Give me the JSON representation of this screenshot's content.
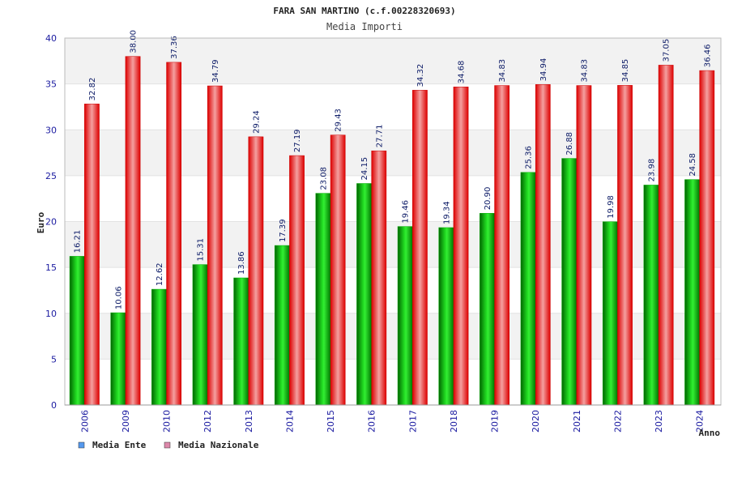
{
  "chart_data": {
    "type": "bar",
    "title": "FARA SAN MARTINO (c.f.00228320693)",
    "subtitle": "Media Importi",
    "xlabel": "Anno",
    "ylabel": "Euro",
    "ylim": [
      0,
      40
    ],
    "yticks": [
      0,
      5,
      10,
      15,
      20,
      25,
      30,
      35,
      40
    ],
    "categories": [
      "2006",
      "2009",
      "2010",
      "2012",
      "2013",
      "2014",
      "2015",
      "2016",
      "2017",
      "2018",
      "2019",
      "2020",
      "2021",
      "2022",
      "2023",
      "2024"
    ],
    "series": [
      {
        "name": "Media Ente",
        "color": "#00cc00",
        "legend_color": "#5599ee",
        "values": [
          16.21,
          10.06,
          12.62,
          15.31,
          13.86,
          17.39,
          23.08,
          24.15,
          19.46,
          19.34,
          20.9,
          25.36,
          26.88,
          19.98,
          23.98,
          24.58
        ],
        "labels": [
          "16.21",
          "10.06",
          "12.62",
          "15.31",
          "13.86",
          "17.39",
          "23.08",
          "24.15",
          "19.46",
          "19.34",
          "20.90",
          "25.36",
          "26.88",
          "19.98",
          "23.98",
          "24.58"
        ]
      },
      {
        "name": "Media Nazionale",
        "color": "#ee1111",
        "legend_color": "#dd88aa",
        "values": [
          32.82,
          38.0,
          37.36,
          34.79,
          29.24,
          27.19,
          29.43,
          27.71,
          34.32,
          34.68,
          34.83,
          34.94,
          34.83,
          34.85,
          37.05,
          36.46
        ],
        "labels": [
          "32.82",
          "38.00",
          "37.36",
          "34.79",
          "29.24",
          "27.19",
          "29.43",
          "27.71",
          "34.32",
          "34.68",
          "34.83",
          "34.94",
          "34.83",
          "34.85",
          "37.05",
          "36.46"
        ]
      }
    ],
    "grid": "horizontal bands",
    "legend_position": "bottom-left"
  }
}
